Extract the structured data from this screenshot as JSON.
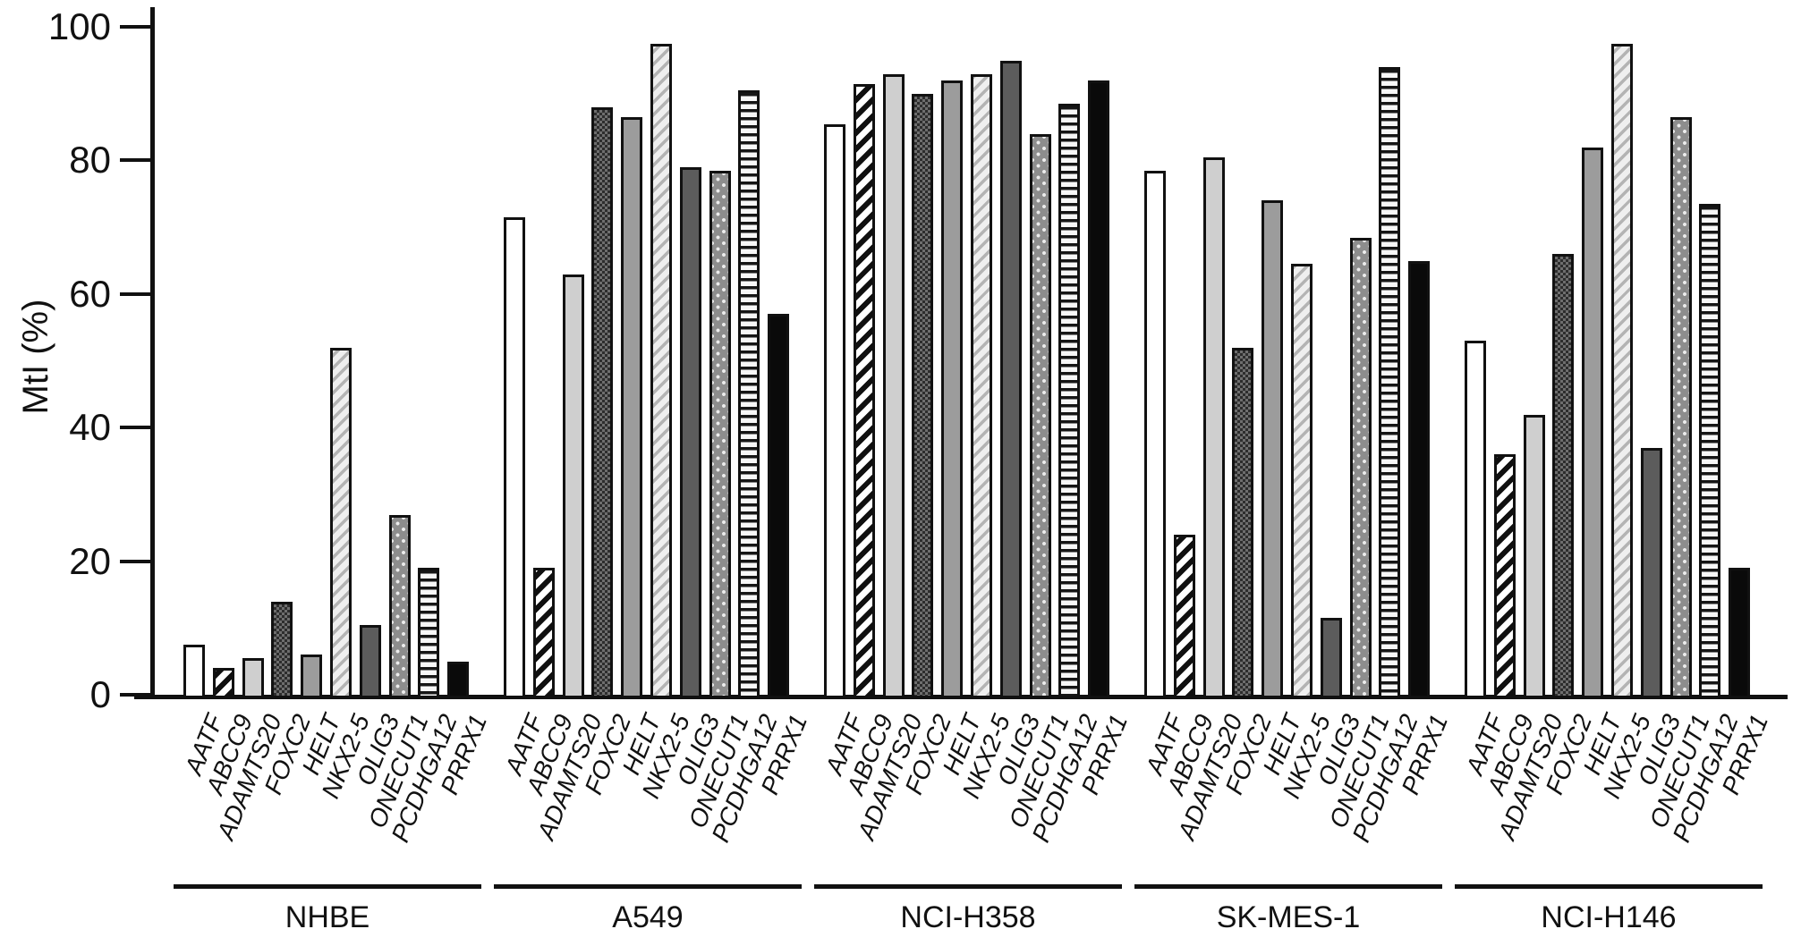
{
  "chart_data": {
    "type": "bar",
    "title": "",
    "ylabel": "MtI (%)",
    "xlabel": "",
    "ylim": [
      0,
      100
    ],
    "yticks": [
      0,
      20,
      40,
      60,
      80,
      100
    ],
    "grid": false,
    "legend_position": "none",
    "categories": [
      "AATF",
      "ABCC9",
      "ADAMTS20",
      "FOXC2",
      "HELT",
      "NKX2-5",
      "OLIG3",
      "ONECUT1",
      "PCDHGA12",
      "PRRX1"
    ],
    "groups": [
      {
        "name": "NHBE",
        "values": [
          8,
          4.5,
          6,
          14.5,
          6.5,
          52.5,
          11,
          27.5,
          19.5,
          5.5
        ]
      },
      {
        "name": "A549",
        "values": [
          72,
          19.5,
          63.5,
          88.5,
          87,
          98,
          79.5,
          79,
          91,
          57.5
        ]
      },
      {
        "name": "NCI-H358",
        "values": [
          86,
          92,
          93.5,
          90.5,
          92.5,
          93.5,
          95.5,
          84.5,
          89,
          92.5
        ]
      },
      {
        "name": "SK-MES-1",
        "values": [
          79,
          24.5,
          81,
          52.5,
          74.5,
          65,
          12,
          69,
          94.5,
          65.5
        ]
      },
      {
        "name": "NCI-H146",
        "values": [
          53.5,
          36.5,
          42.5,
          66.5,
          82.5,
          98,
          37.5,
          87,
          74,
          19.5
        ]
      }
    ],
    "bar_patterns": [
      {
        "gene": "AATF",
        "pattern": "solid-white"
      },
      {
        "gene": "ABCC9",
        "pattern": "bold-diagonal-hatch"
      },
      {
        "gene": "ADAMTS20",
        "pattern": "solid-light-gray"
      },
      {
        "gene": "FOXC2",
        "pattern": "dark-fine-checker"
      },
      {
        "gene": "HELT",
        "pattern": "solid-medium-gray"
      },
      {
        "gene": "NKX2-5",
        "pattern": "light-diagonal-hatch"
      },
      {
        "gene": "OLIG3",
        "pattern": "solid-dark-gray"
      },
      {
        "gene": "ONECUT1",
        "pattern": "gray-white-dots"
      },
      {
        "gene": "PCDHGA12",
        "pattern": "horizontal-stripes"
      },
      {
        "gene": "PRRX1",
        "pattern": "solid-black"
      }
    ],
    "colors": {
      "axis": "#111111",
      "text": "#111111",
      "background": "#ffffff",
      "light_gray": "#cfcfcf",
      "medium_gray": "#9c9c9c",
      "dark_gray": "#5c5c5c",
      "dot_gray": "#8d8d8d",
      "black": "#0a0a0a"
    }
  }
}
